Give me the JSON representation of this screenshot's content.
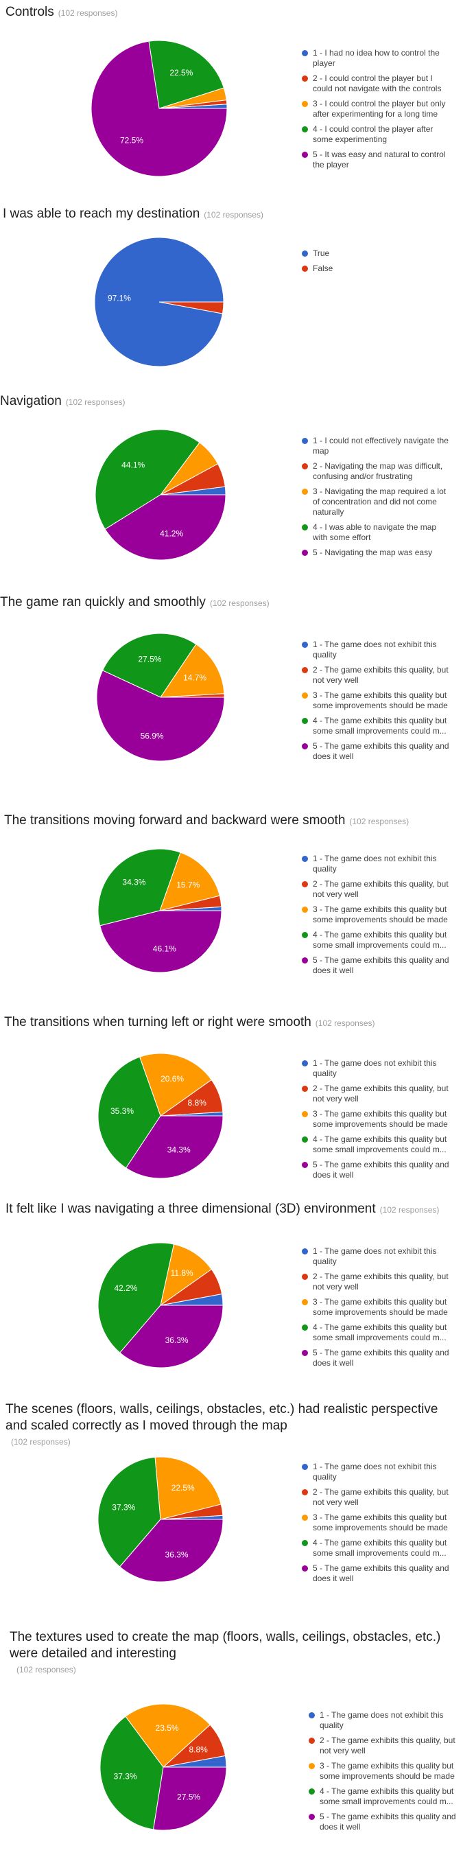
{
  "chart_data": [
    {
      "type": "pie",
      "title": "Controls",
      "responses": "(102 responses)",
      "labels": [
        "1 - I had no idea how to control the player",
        "2 - I could control the player but I could not navigate with the controls",
        "3 - I could control the player but only after experimenting for a long time",
        "4 - I could control the player after some experimenting",
        "5 - It was easy and natural to control the player"
      ],
      "values": [
        1.0,
        1.0,
        2.9,
        22.5,
        72.5
      ],
      "data_labels": [
        "",
        "",
        "",
        "22.5%",
        "72.5%"
      ],
      "colors": [
        "#3366cc",
        "#dc3912",
        "#ff9900",
        "#109618",
        "#990099"
      ]
    },
    {
      "type": "pie",
      "title": "I was able to reach my destination",
      "responses": "(102 responses)",
      "labels": [
        "True",
        "False"
      ],
      "values": [
        97.1,
        2.9
      ],
      "data_labels": [
        "97.1%",
        ""
      ],
      "colors": [
        "#3366cc",
        "#dc3912"
      ]
    },
    {
      "type": "pie",
      "title": "Navigation",
      "responses": "(102 responses)",
      "labels": [
        "1 - I could not effectively navigate the map",
        "2 - Navigating the map was difficult, confusing and/or frustrating",
        "3 - Navigating the map required a lot of concentration and did not come naturally",
        "4 - I was able to navigate the map with some effort",
        "5 - Navigating the map was easy"
      ],
      "values": [
        2.0,
        5.9,
        6.9,
        44.1,
        41.2
      ],
      "data_labels": [
        "",
        "",
        "",
        "44.1%",
        "41.2%"
      ],
      "colors": [
        "#3366cc",
        "#dc3912",
        "#ff9900",
        "#109618",
        "#990099"
      ]
    },
    {
      "type": "pie",
      "title": "The game ran quickly and smoothly",
      "responses": "(102 responses)",
      "labels": [
        "1 - The game does not exhibit this quality",
        "2 - The game exhibits this quality, but not very well",
        "3 - The game exhibits this quality but some improvements should be made",
        "4 - The game exhibits this quality but some small improvements could m...",
        "5 - The game exhibits this quality and does it well"
      ],
      "values": [
        0.0,
        0.9,
        14.7,
        27.5,
        56.9
      ],
      "data_labels": [
        "",
        "",
        "14.7%",
        "27.5%",
        "56.9%"
      ],
      "colors": [
        "#3366cc",
        "#dc3912",
        "#ff9900",
        "#109618",
        "#990099"
      ]
    },
    {
      "type": "pie",
      "title": "The transitions moving forward and backward were smooth",
      "responses": "(102 responses)",
      "labels": [
        "1 - The game does not exhibit this quality",
        "2 - The game exhibits this quality, but not very well",
        "3 - The game exhibits this quality but some improvements should be made",
        "4 - The game exhibits this quality but some small improvements could m...",
        "5 - The game exhibits this quality and does it well"
      ],
      "values": [
        1.0,
        2.9,
        15.7,
        34.3,
        46.1
      ],
      "data_labels": [
        "",
        "",
        "15.7%",
        "34.3%",
        "46.1%"
      ],
      "colors": [
        "#3366cc",
        "#dc3912",
        "#ff9900",
        "#109618",
        "#990099"
      ]
    },
    {
      "type": "pie",
      "title": "The transitions when turning left or right were smooth",
      "responses": "(102 responses)",
      "labels": [
        "1 - The game does not exhibit this quality",
        "2 - The game exhibits this quality, but not very well",
        "3 - The game exhibits this quality but some improvements should be made",
        "4 - The game exhibits this quality but some small improvements could m...",
        "5 - The game exhibits this quality and does it well"
      ],
      "values": [
        1.0,
        8.8,
        20.6,
        35.3,
        34.3
      ],
      "data_labels": [
        "",
        "8.8%",
        "20.6%",
        "35.3%",
        "34.3%"
      ],
      "colors": [
        "#3366cc",
        "#dc3912",
        "#ff9900",
        "#109618",
        "#990099"
      ]
    },
    {
      "type": "pie",
      "title": "It felt like I was navigating a three dimensional (3D) environment",
      "responses": "(102 responses)",
      "labels": [
        "1 - The game does not exhibit this quality",
        "2 - The game exhibits this quality, but not very well",
        "3 - The game exhibits this quality but some improvements should be made",
        "4 - The game exhibits this quality but some small improvements could m...",
        "5 - The game exhibits this quality and does it well"
      ],
      "values": [
        2.9,
        6.9,
        11.8,
        42.2,
        36.3
      ],
      "data_labels": [
        "",
        "",
        "11.8%",
        "42.2%",
        "36.3%"
      ],
      "colors": [
        "#3366cc",
        "#dc3912",
        "#ff9900",
        "#109618",
        "#990099"
      ]
    },
    {
      "type": "pie",
      "title": "The scenes (floors, walls, ceilings, obstacles, etc.) had realistic perspective and scaled correctly as I moved through the map",
      "responses": "(102 responses)",
      "labels": [
        "1 - The game does not exhibit this quality",
        "2 - The game exhibits this quality, but not very well",
        "3 - The game exhibits this quality but some improvements should be made",
        "4 - The game exhibits this quality but some small improvements could m...",
        "5 - The game exhibits this quality and does it well"
      ],
      "values": [
        1.0,
        2.9,
        22.5,
        37.3,
        36.3
      ],
      "data_labels": [
        "",
        "",
        "22.5%",
        "37.3%",
        "36.3%"
      ],
      "colors": [
        "#3366cc",
        "#dc3912",
        "#ff9900",
        "#109618",
        "#990099"
      ]
    },
    {
      "type": "pie",
      "title": "The textures used to create the map (floors, walls, ceilings, obstacles, etc.) were detailed and interesting",
      "responses": "(102 responses)",
      "labels": [
        "1 - The game does not exhibit this quality",
        "2 - The game exhibits this quality, but not very well",
        "3 - The game exhibits this quality but some improvements should be made",
        "4 - The game exhibits this quality but some small improvements could m...",
        "5 - The game exhibits this quality and does it well"
      ],
      "values": [
        2.9,
        8.8,
        23.5,
        37.3,
        27.5
      ],
      "data_labels": [
        "",
        "8.8%",
        "23.5%",
        "37.3%",
        "27.5%"
      ],
      "colors": [
        "#3366cc",
        "#dc3912",
        "#ff9900",
        "#109618",
        "#990099"
      ]
    }
  ]
}
